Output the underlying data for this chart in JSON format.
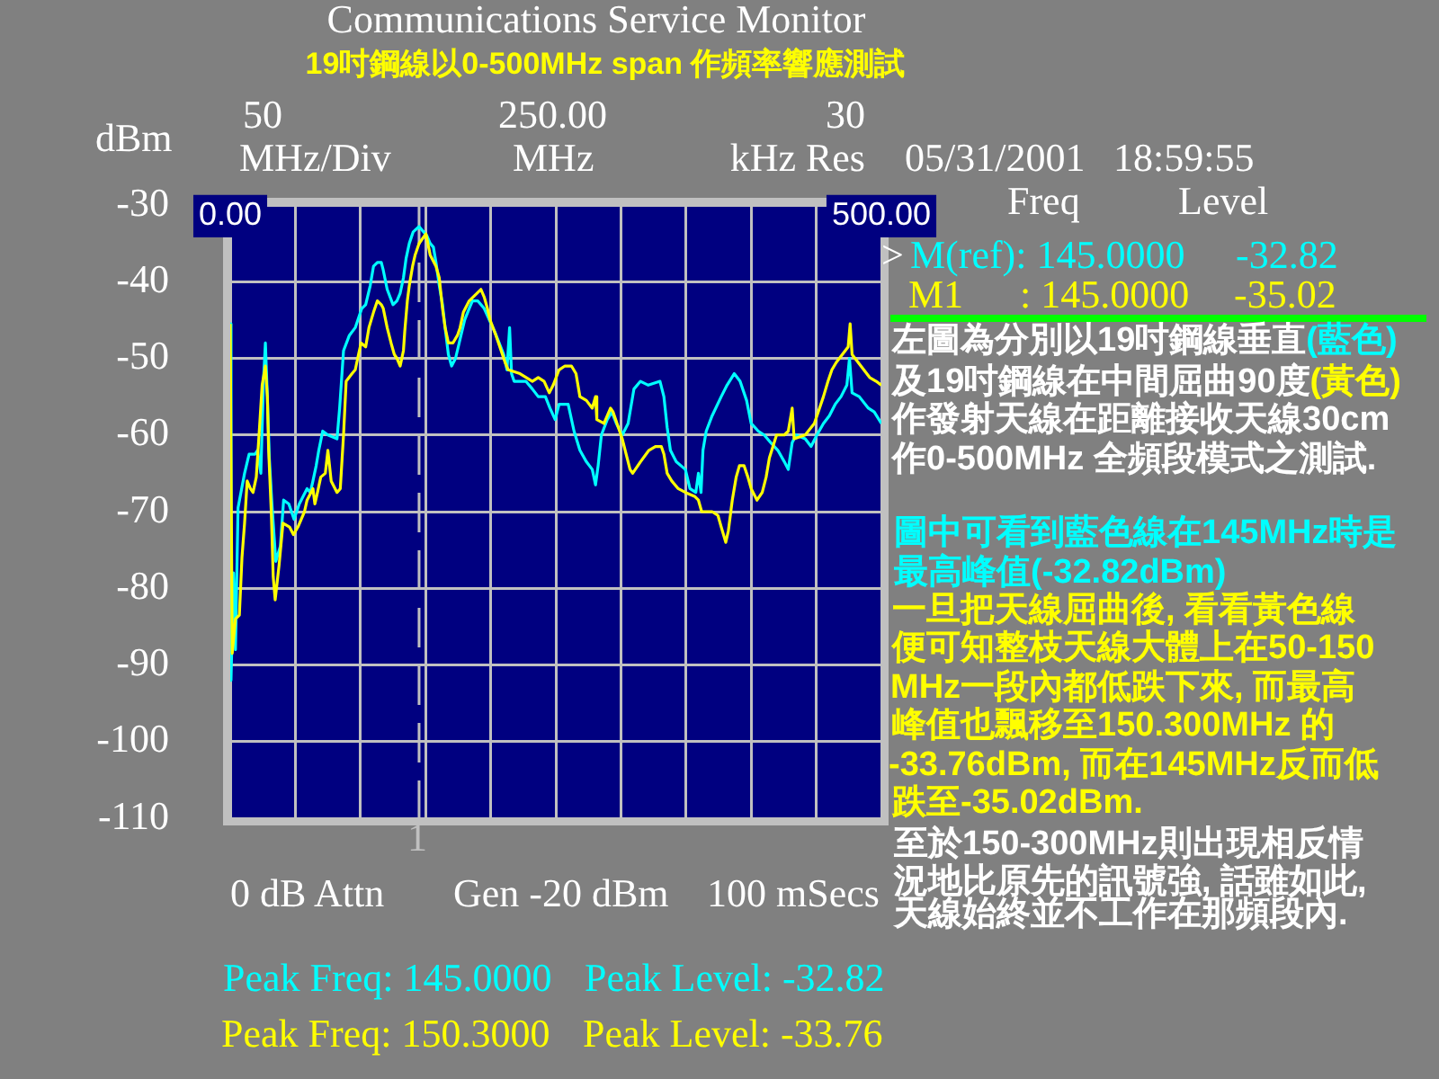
{
  "chart_data": {
    "type": "line",
    "title": "Communications Service Monitor",
    "subtitle": "19吋鋼線以0-500MHz span 作頻率響應測試",
    "ylabel": "dBm",
    "xlim": [
      0,
      500
    ],
    "xticks": [
      {
        "value": 0,
        "label": "0.00"
      },
      {
        "value": 50,
        "label": null
      },
      {
        "value": 100,
        "label": null
      },
      {
        "value": 150,
        "label": null
      },
      {
        "value": 200,
        "label": null
      },
      {
        "value": 250,
        "label": null
      },
      {
        "value": 300,
        "label": null
      },
      {
        "value": 350,
        "label": null
      },
      {
        "value": 400,
        "label": null
      },
      {
        "value": 450,
        "label": null
      },
      {
        "value": 500,
        "label": "500.00"
      }
    ],
    "ylim": [
      -110,
      -30
    ],
    "yticks": [
      -110,
      -100,
      -90,
      -80,
      -70,
      -60,
      -50,
      -40,
      -30
    ],
    "grid": true,
    "ref_lines": [
      {
        "axis": "x",
        "value": 145,
        "color": "#c0c0c0",
        "line_style": "dashed"
      }
    ],
    "series": [
      {
        "color": "#00ffff",
        "x": [
          0,
          0.6,
          2.5,
          4,
          6,
          11,
          14.5,
          19,
          21,
          23.5,
          25.5,
          27,
          28.5,
          30,
          32,
          35,
          38.5,
          41,
          45,
          49,
          53,
          59,
          61.5,
          63.5,
          66,
          68,
          71,
          75,
          82,
          84,
          87,
          91.5,
          96,
          101,
          104,
          107.5,
          110,
          113,
          116,
          117.5,
          120.5,
          125,
          128,
          130.5,
          133,
          135,
          137.5,
          140.5,
          145,
          151,
          153.5,
          156,
          158,
          160.5,
          163,
          165,
          167.5,
          170,
          173,
          176.5,
          180,
          183.5,
          186,
          190,
          195,
          199,
          203,
          206.5,
          210,
          212.5,
          214.5,
          216,
          218,
          227,
          232,
          236.5,
          242,
          245.5,
          249.5,
          252.5,
          259.5,
          264,
          268.5,
          273.5,
          278,
          280.5,
          282.5,
          285,
          289.5,
          293,
          296.5,
          301,
          305.5,
          310,
          315,
          321,
          330,
          333,
          335.5,
          338,
          342.5,
          349.5,
          353,
          357.5,
          359.5,
          361.5,
          363,
          365.5,
          370,
          377,
          381.5,
          387,
          391.5,
          396.5,
          400,
          405.5,
          410,
          415,
          420.5,
          425.5,
          428.5,
          431.5,
          434.5,
          441.5,
          446,
          450.5,
          455.5,
          460,
          464.5,
          469,
          473.5,
          475.5,
          477.5,
          483,
          490,
          494.5,
          500
        ],
        "values": [
          -45.5,
          -92,
          -78,
          -88,
          -69.5,
          -65,
          -62.5,
          -62.5,
          -62,
          -65,
          -53,
          -48,
          -55,
          -63,
          -69,
          -76.5,
          -74.5,
          -68.5,
          -69,
          -71,
          -69,
          -67,
          -67.5,
          -66,
          -64,
          -62,
          -59.5,
          -60,
          -60.5,
          -56.5,
          -49,
          -47,
          -46,
          -43.5,
          -43,
          -40.5,
          -38,
          -37.5,
          -37.5,
          -38.5,
          -41,
          -43,
          -42.5,
          -41.5,
          -39.5,
          -37,
          -35,
          -33.5,
          -32.82,
          -34,
          -35,
          -35.5,
          -37.5,
          -40.5,
          -43,
          -46,
          -49.5,
          -51,
          -50,
          -47.5,
          -45,
          -43.5,
          -42.5,
          -42.5,
          -43.5,
          -45,
          -46.5,
          -48,
          -49.5,
          -51.5,
          -46,
          -52,
          -53,
          -53,
          -54,
          -55,
          -55,
          -56.5,
          -58,
          -56,
          -56,
          -59.5,
          -62,
          -63.5,
          -64.5,
          -66.5,
          -64,
          -60,
          -58,
          -57,
          -58.5,
          -60,
          -58.5,
          -54,
          -53,
          -53.5,
          -53,
          -55,
          -59,
          -62,
          -63.5,
          -64.5,
          -67,
          -67.5,
          -65,
          -67.5,
          -62,
          -59.5,
          -57.5,
          -55,
          -53.5,
          -52,
          -53,
          -55.5,
          -58.5,
          -59.5,
          -60,
          -61,
          -62,
          -63.5,
          -64.5,
          -61,
          -60,
          -60.5,
          -61.5,
          -60,
          -58.5,
          -57.5,
          -56,
          -55,
          -53.5,
          -50,
          -54.5,
          -55,
          -56.5,
          -57,
          -58.5
        ]
      },
      {
        "color": "#ffff00",
        "x": [
          0,
          1.5,
          4,
          7,
          9,
          11,
          13,
          15.5,
          17.5,
          20,
          22.5,
          24.5,
          27,
          28.5,
          29.5,
          31.5,
          33,
          34.5,
          37.5,
          40.5,
          45.5,
          48.5,
          52,
          57,
          59,
          63.5,
          65,
          67,
          69.5,
          73,
          75,
          77.5,
          82,
          84.5,
          87,
          89,
          93.5,
          96,
          98.5,
          100.5,
          104,
          106.5,
          110,
          113,
          116,
          117.5,
          120.5,
          123.5,
          126,
          128,
          130.5,
          133,
          134,
          136,
          137.5,
          140,
          142,
          145,
          150.3,
          153.5,
          158,
          160.5,
          163,
          165,
          167.5,
          171,
          174.5,
          176.5,
          179,
          183.5,
          186.5,
          189.5,
          192.5,
          195,
          197.5,
          199.5,
          204,
          209,
          211,
          213.5,
          222.5,
          232,
          236.5,
          241,
          245,
          248,
          252.5,
          257,
          262,
          265.5,
          268.5,
          273.5,
          278,
          280.5,
          281.5,
          287,
          292,
          294,
          298,
          301,
          304,
          307,
          309,
          315,
          321.5,
          326.5,
          331,
          333,
          335.5,
          339,
          344,
          349.5,
          356.5,
          359.5,
          362,
          370,
          374.5,
          377,
          380.5,
          382.5,
          385.5,
          388.5,
          391,
          394.5,
          397.5,
          400,
          404.5,
          408.5,
          411.5,
          414,
          419.5,
          425.5,
          428.5,
          431.5,
          433,
          441.5,
          448.5,
          451.5,
          455.5,
          459,
          462,
          465.5,
          470,
          474.5,
          476,
          477.5,
          482,
          486.5,
          491,
          496,
          500
        ],
        "values": [
          -45.5,
          -88.5,
          -84,
          -83.5,
          -76,
          -71.5,
          -66,
          -67,
          -67.5,
          -65.5,
          -59,
          -53.5,
          -51,
          -55,
          -62,
          -70,
          -78.5,
          -81.5,
          -77,
          -71.5,
          -72,
          -73,
          -72,
          -70,
          -68.5,
          -67,
          -69,
          -67.5,
          -65.5,
          -65,
          -62,
          -66,
          -67.5,
          -67,
          -60,
          -53,
          -52,
          -51.5,
          -49.5,
          -48,
          -48.5,
          -46,
          -44,
          -42.5,
          -43,
          -43.5,
          -46,
          -48,
          -49.5,
          -50,
          -51,
          -49,
          -46.5,
          -42.5,
          -40.5,
          -38,
          -36.5,
          -35.02,
          -33.76,
          -36.5,
          -38,
          -39.5,
          -43.5,
          -46,
          -48,
          -48,
          -47,
          -46,
          -44,
          -42.5,
          -42,
          -41.5,
          -41,
          -42,
          -43.5,
          -45,
          -47,
          -49.5,
          -50.5,
          -51.5,
          -52,
          -53,
          -52.5,
          -53,
          -54.5,
          -53.5,
          -51.5,
          -51,
          -51,
          -52,
          -55,
          -55.5,
          -56.5,
          -55,
          -58,
          -58.5,
          -56.5,
          -57,
          -59,
          -60.5,
          -62.5,
          -64.5,
          -65,
          -63.5,
          -62,
          -61.5,
          -61.5,
          -62.5,
          -65,
          -66,
          -67,
          -67.5,
          -68,
          -68.5,
          -70,
          -70,
          -70.5,
          -72,
          -74,
          -72.5,
          -68.5,
          -65.5,
          -64,
          -64,
          -65.5,
          -67,
          -68.5,
          -67.5,
          -65.5,
          -63,
          -60,
          -60,
          -59.5,
          -56.5,
          -60.5,
          -60,
          -58.5,
          -57,
          -55,
          -53,
          -51.5,
          -50.5,
          -49.5,
          -48.5,
          -45.5,
          -49.5,
          -50.5,
          -51.5,
          -52.5,
          -53,
          -53.5
        ]
      }
    ],
    "annotations": [
      "50",
      "MHz/Div",
      "250.00",
      "MHz",
      "30",
      "kHz Res",
      "05/31/2001",
      "18:59:55",
      "Freq",
      "Level",
      ">",
      "M(ref): 145.0000",
      "-32.82",
      "M1",
      ": 145.0000",
      "-35.02",
      "左圖為分別以19吋鋼線垂直",
      "(藍色)",
      "及19吋鋼線在中間屈曲90度",
      "(黃色)",
      "作發射天線在距離接收天線30cm",
      "作0-500MHz 全頻段模式之測試.",
      "圖中可看到藍色線在145MHz時是",
      "最高峰值(-32.82dBm)",
      "一旦把天線屈曲後, 看看黃色線",
      "便可知整枝天線大體上在50-150",
      "MHz一段內都低跌下來, 而最高",
      "峰值也飄移至150.300MHz 的",
      "-33.76dBm, 而在145MHz反而低",
      "跌至-35.02dBm.",
      "至於150-300MHz則出現相反情",
      "況地比原先的訊號強, 話雖如此,",
      "天線始終並不工作在那頻段內.",
      "1",
      "0 dB Attn",
      "Gen -20 dBm",
      "100 mSecs",
      "Peak Freq: 145.0000",
      "Peak Level: -32.82",
      "Peak Freq: 150.3000",
      "Peak Level: -33.76"
    ]
  }
}
